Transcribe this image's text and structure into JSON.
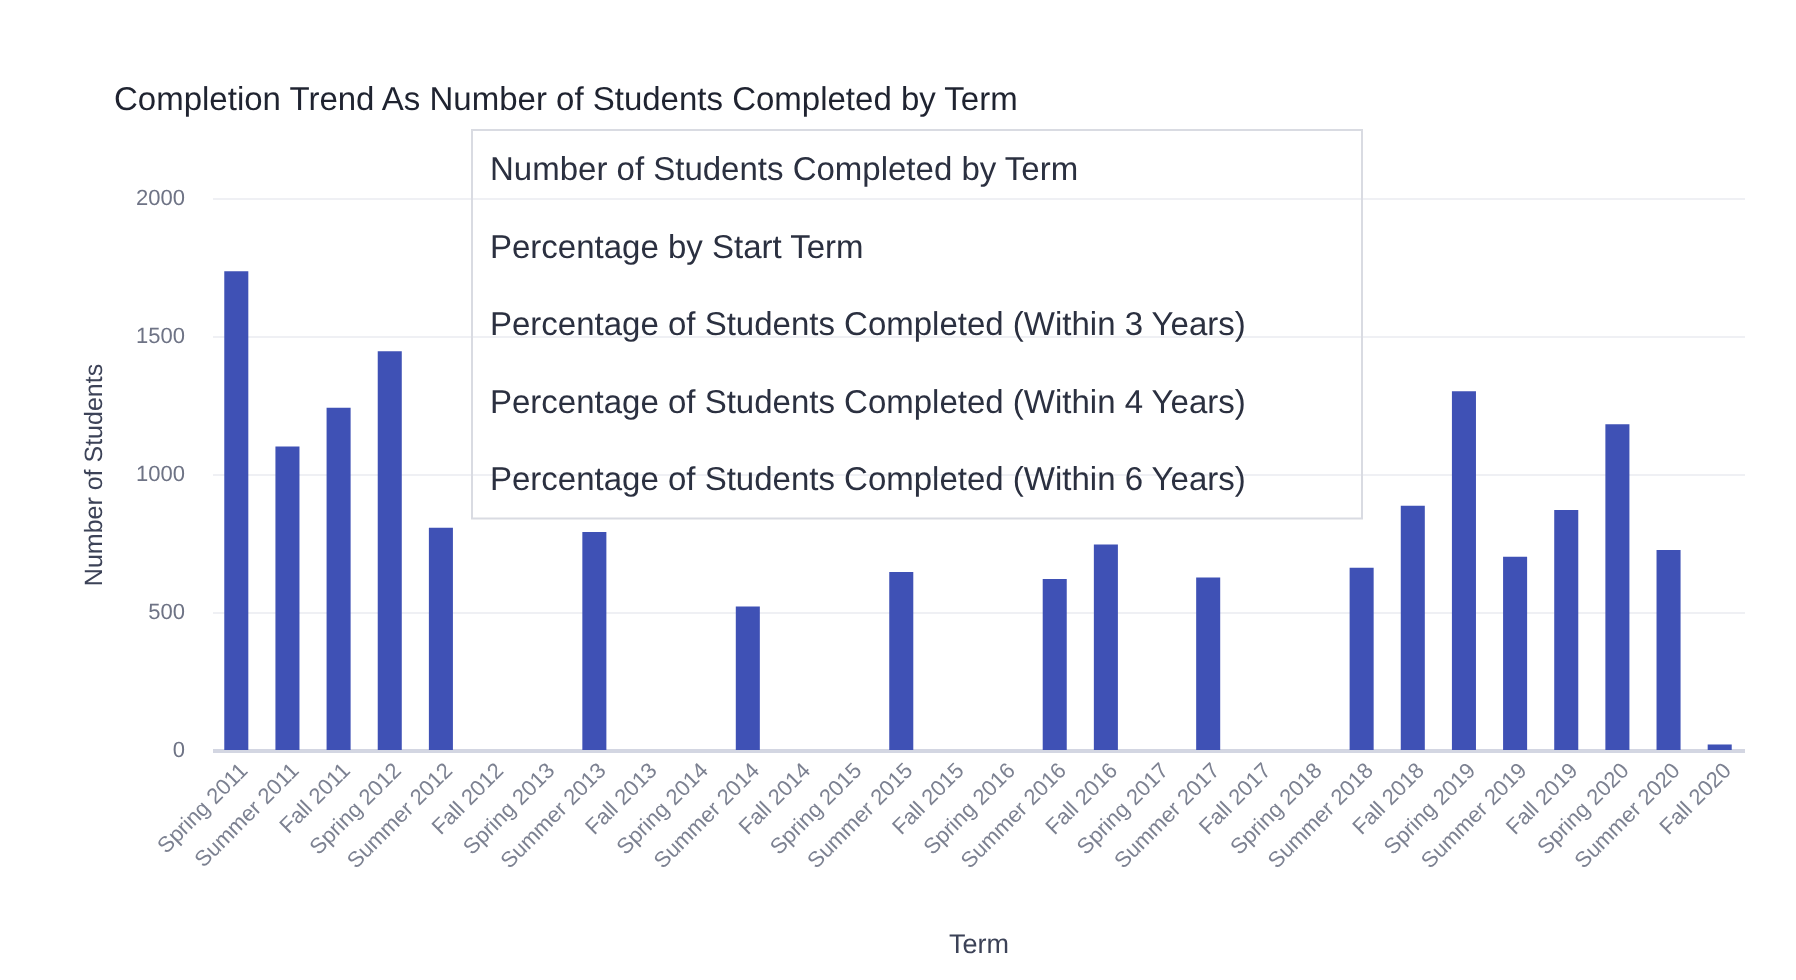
{
  "chart_data": {
    "type": "bar",
    "title": "Completion Trend As Number of Students Completed by Term",
    "xlabel": "Term",
    "ylabel": "Number of Students",
    "categories": [
      "Spring 2011",
      "Summer 2011",
      "Fall 2011",
      "Spring 2012",
      "Summer 2012",
      "Fall 2012",
      "Spring 2013",
      "Summer 2013",
      "Fall 2013",
      "Spring 2014",
      "Summer 2014",
      "Fall 2014",
      "Spring 2015",
      "Summer 2015",
      "Fall 2015",
      "Spring 2016",
      "Summer 2016",
      "Fall 2016",
      "Spring 2017",
      "Summer 2017",
      "Fall 2017",
      "Spring 2018",
      "Summer 2018",
      "Fall 2018",
      "Spring 2019",
      "Summer 2019",
      "Fall 2019",
      "Spring 2020",
      "Summer 2020",
      "Fall 2020"
    ],
    "values": [
      1735,
      1100,
      1240,
      1445,
      805,
      null,
      null,
      790,
      null,
      null,
      520,
      null,
      null,
      645,
      null,
      null,
      620,
      745,
      null,
      625,
      null,
      null,
      660,
      885,
      1300,
      700,
      870,
      1180,
      725,
      20
    ],
    "color": "#3f51b5",
    "ylim": [
      0,
      2000
    ],
    "yticks": [
      0,
      500,
      1000,
      1500,
      2000
    ],
    "grid": "y",
    "annotations": [
      "Number of Students Completed by Term",
      "Percentage by Start Term",
      "Percentage of Students Completed (Within 3 Years)",
      "Percentage of Students Completed (Within 4 Years)",
      "Percentage of Students Completed (Within 6 Years)"
    ]
  }
}
